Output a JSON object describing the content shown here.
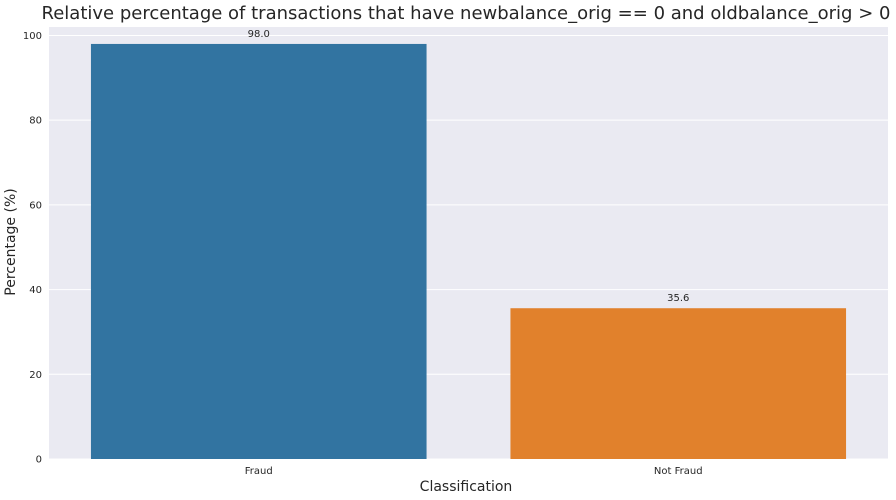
{
  "chart_data": {
    "type": "bar",
    "title": "Relative percentage of transactions that have newbalance_orig == 0 and oldbalance_orig > 0",
    "xlabel": "Classification",
    "ylabel": "Percentage (%)",
    "categories": [
      "Fraud",
      "Not Fraud"
    ],
    "values": [
      98.0,
      35.6
    ],
    "data_labels": [
      "98.0",
      "35.6"
    ],
    "colors": [
      "#3274a1",
      "#e1812c"
    ],
    "ylim": [
      0,
      102
    ],
    "yticks": [
      0,
      20,
      40,
      60,
      80,
      100
    ],
    "ytick_labels": [
      "0",
      "20",
      "40",
      "60",
      "80",
      "100"
    ],
    "grid": true,
    "background": "#eaeaf2"
  }
}
